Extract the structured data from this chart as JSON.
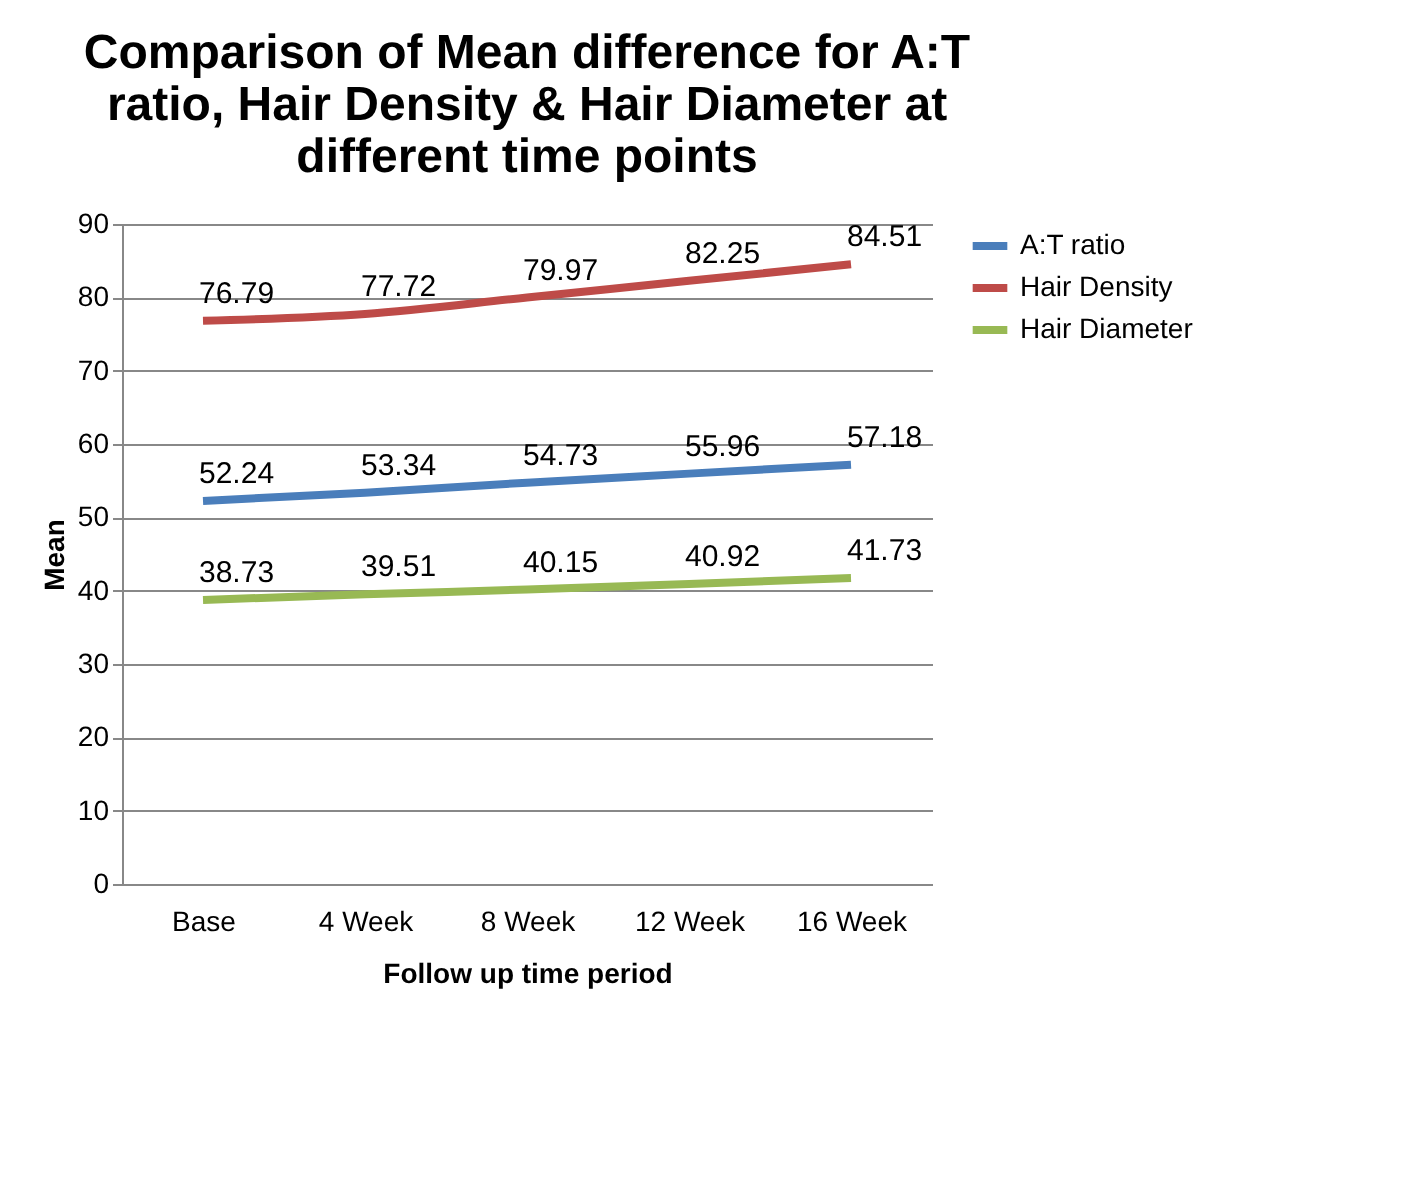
{
  "chart_data": {
    "type": "line",
    "title": "Comparison of Mean difference for A:T ratio, Hair Density & Hair Diameter at different time points",
    "xlabel": "Follow up time period",
    "ylabel": "Mean",
    "categories": [
      "Base",
      "4 Week",
      "8 Week",
      "12 Week",
      "16 Week"
    ],
    "series": [
      {
        "name": "A:T ratio",
        "color": "#4a7ebb",
        "values": [
          52.24,
          53.34,
          54.73,
          55.96,
          57.18
        ]
      },
      {
        "name": "Hair Density",
        "color": "#be4b48",
        "values": [
          76.79,
          77.72,
          79.97,
          82.25,
          84.51
        ]
      },
      {
        "name": "Hair Diameter",
        "color": "#98b954",
        "values": [
          38.73,
          39.51,
          40.15,
          40.92,
          41.73
        ]
      }
    ],
    "ylim": [
      0,
      90
    ],
    "yticks": [
      0,
      10,
      20,
      30,
      40,
      50,
      60,
      70,
      80,
      90
    ],
    "grid": "y",
    "legend": "right",
    "data_labels": true,
    "marker": "none",
    "line_style": "solid"
  }
}
